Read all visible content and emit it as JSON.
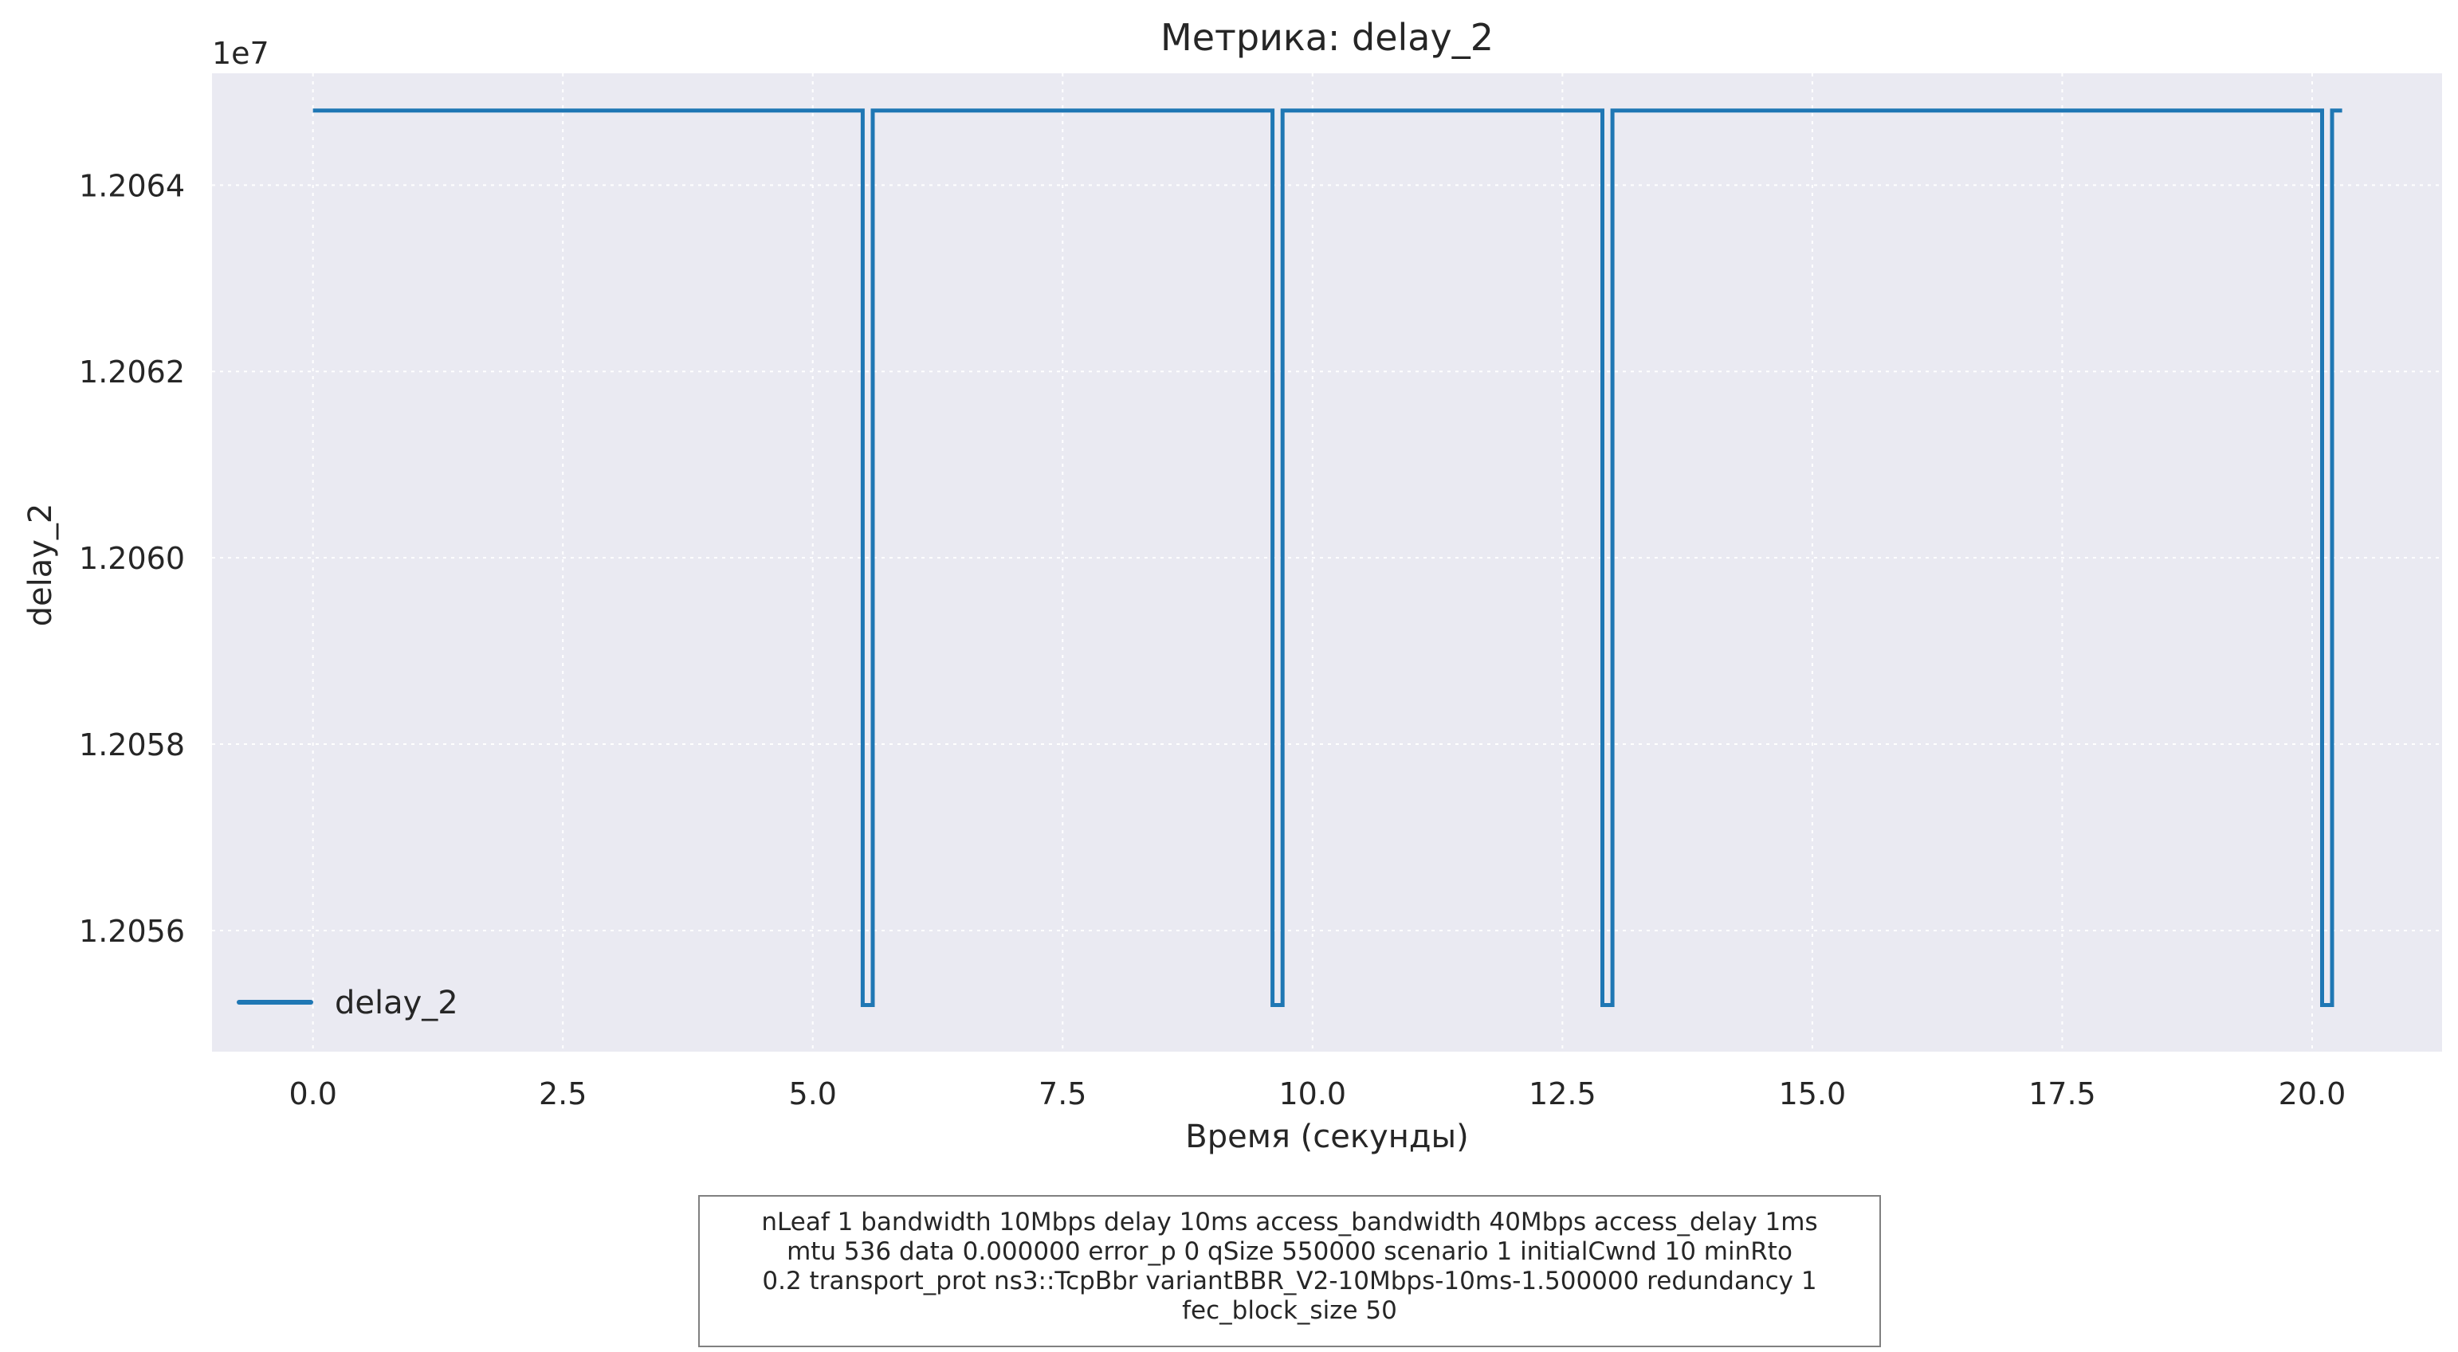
{
  "chart_data": {
    "type": "line",
    "title": "Метрика: delay_2",
    "xlabel": "Время (секунды)",
    "ylabel": "delay_2",
    "y_offset_label": "1e7",
    "y_multiplier": 10000000,
    "xlim": [
      -1.01,
      21.3
    ],
    "ylim": [
      1.20547,
      1.20652
    ],
    "x_ticks": [
      0.0,
      2.5,
      5.0,
      7.5,
      10.0,
      12.5,
      15.0,
      17.5,
      20.0
    ],
    "x_tick_labels": [
      "0.0",
      "2.5",
      "5.0",
      "7.5",
      "10.0",
      "12.5",
      "15.0",
      "17.5",
      "20.0"
    ],
    "y_ticks": [
      1.2056,
      1.2058,
      1.206,
      1.2062,
      1.2064
    ],
    "y_tick_labels": [
      "1.2056",
      "1.2058",
      "1.2060",
      "1.2062",
      "1.2064"
    ],
    "grid": true,
    "legend_position": "lower-left",
    "series": [
      {
        "name": "delay_2",
        "color": "#1f77b4",
        "x": [
          0.0,
          5.5,
          5.5,
          5.6,
          5.6,
          9.6,
          9.6,
          9.7,
          9.7,
          12.9,
          12.9,
          13.0,
          13.0,
          20.1,
          20.1,
          20.2,
          20.2,
          20.3
        ],
        "y": [
          1.20648,
          1.20648,
          1.20552,
          1.20552,
          1.20648,
          1.20648,
          1.20552,
          1.20552,
          1.20648,
          1.20648,
          1.20552,
          1.20552,
          1.20648,
          1.20648,
          1.20552,
          1.20552,
          1.20648,
          1.20648
        ]
      }
    ]
  },
  "info_box": {
    "lines": [
      "nLeaf 1 bandwidth 10Mbps delay  10ms access_bandwidth 40Mbps access_delay 1ms",
      "mtu 536 data  0.000000 error_p 0 qSize 550000 scenario 1 initialCwnd  10 minRto",
      "0.2 transport_prot ns3::TcpBbr variantBBR_V2-10Mbps-10ms-1.500000 redundancy 1",
      "fec_block_size 50"
    ]
  },
  "colors": {
    "plot_background": "#eaeaf2",
    "grid": "#ffffff",
    "text": "#262626",
    "line": "#1f77b4"
  }
}
